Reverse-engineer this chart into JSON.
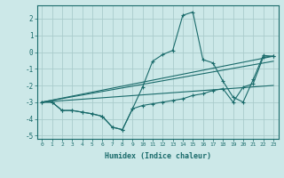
{
  "xlabel": "Humidex (Indice chaleur)",
  "bg_color": "#cce8e8",
  "grid_color": "#aacccc",
  "line_color": "#1a6b6b",
  "xlim": [
    -0.5,
    23.5
  ],
  "ylim": [
    -5.2,
    2.8
  ],
  "xticks": [
    0,
    1,
    2,
    3,
    4,
    5,
    6,
    7,
    8,
    9,
    10,
    11,
    12,
    13,
    14,
    15,
    16,
    17,
    18,
    19,
    20,
    21,
    22,
    23
  ],
  "yticks": [
    -5,
    -4,
    -3,
    -2,
    -1,
    0,
    1,
    2
  ],
  "series": [
    {
      "x": [
        0,
        1,
        2,
        3,
        4,
        5,
        6,
        7,
        8,
        9,
        10,
        11,
        12,
        13,
        14,
        15,
        16,
        17,
        18,
        19,
        20,
        21,
        22,
        23
      ],
      "y": [
        -3.0,
        -3.0,
        -3.5,
        -3.5,
        -3.6,
        -3.7,
        -3.85,
        -4.5,
        -4.65,
        -3.4,
        -2.1,
        -0.55,
        -0.15,
        0.1,
        2.2,
        2.4,
        -0.45,
        -0.65,
        -1.75,
        -2.7,
        -3.0,
        -1.65,
        -0.2,
        -0.25
      ],
      "marker": true
    },
    {
      "x": [
        0,
        1,
        2,
        3,
        4,
        5,
        6,
        7,
        8,
        9,
        10,
        11,
        12,
        13,
        14,
        15,
        16,
        17,
        18,
        19,
        20,
        21,
        22,
        23
      ],
      "y": [
        -3.0,
        -3.0,
        -3.5,
        -3.5,
        -3.6,
        -3.7,
        -3.85,
        -4.5,
        -4.65,
        -3.4,
        -3.2,
        -3.1,
        -3.0,
        -2.9,
        -2.8,
        -2.6,
        -2.5,
        -2.3,
        -2.2,
        -3.0,
        -2.1,
        -1.9,
        -0.3,
        -0.25
      ],
      "marker": true
    },
    {
      "x": [
        0,
        23
      ],
      "y": [
        -3.0,
        -0.25
      ],
      "marker": false
    },
    {
      "x": [
        0,
        23
      ],
      "y": [
        -3.0,
        -0.55
      ],
      "marker": false
    },
    {
      "x": [
        0,
        23
      ],
      "y": [
        -3.0,
        -2.0
      ],
      "marker": false
    }
  ]
}
